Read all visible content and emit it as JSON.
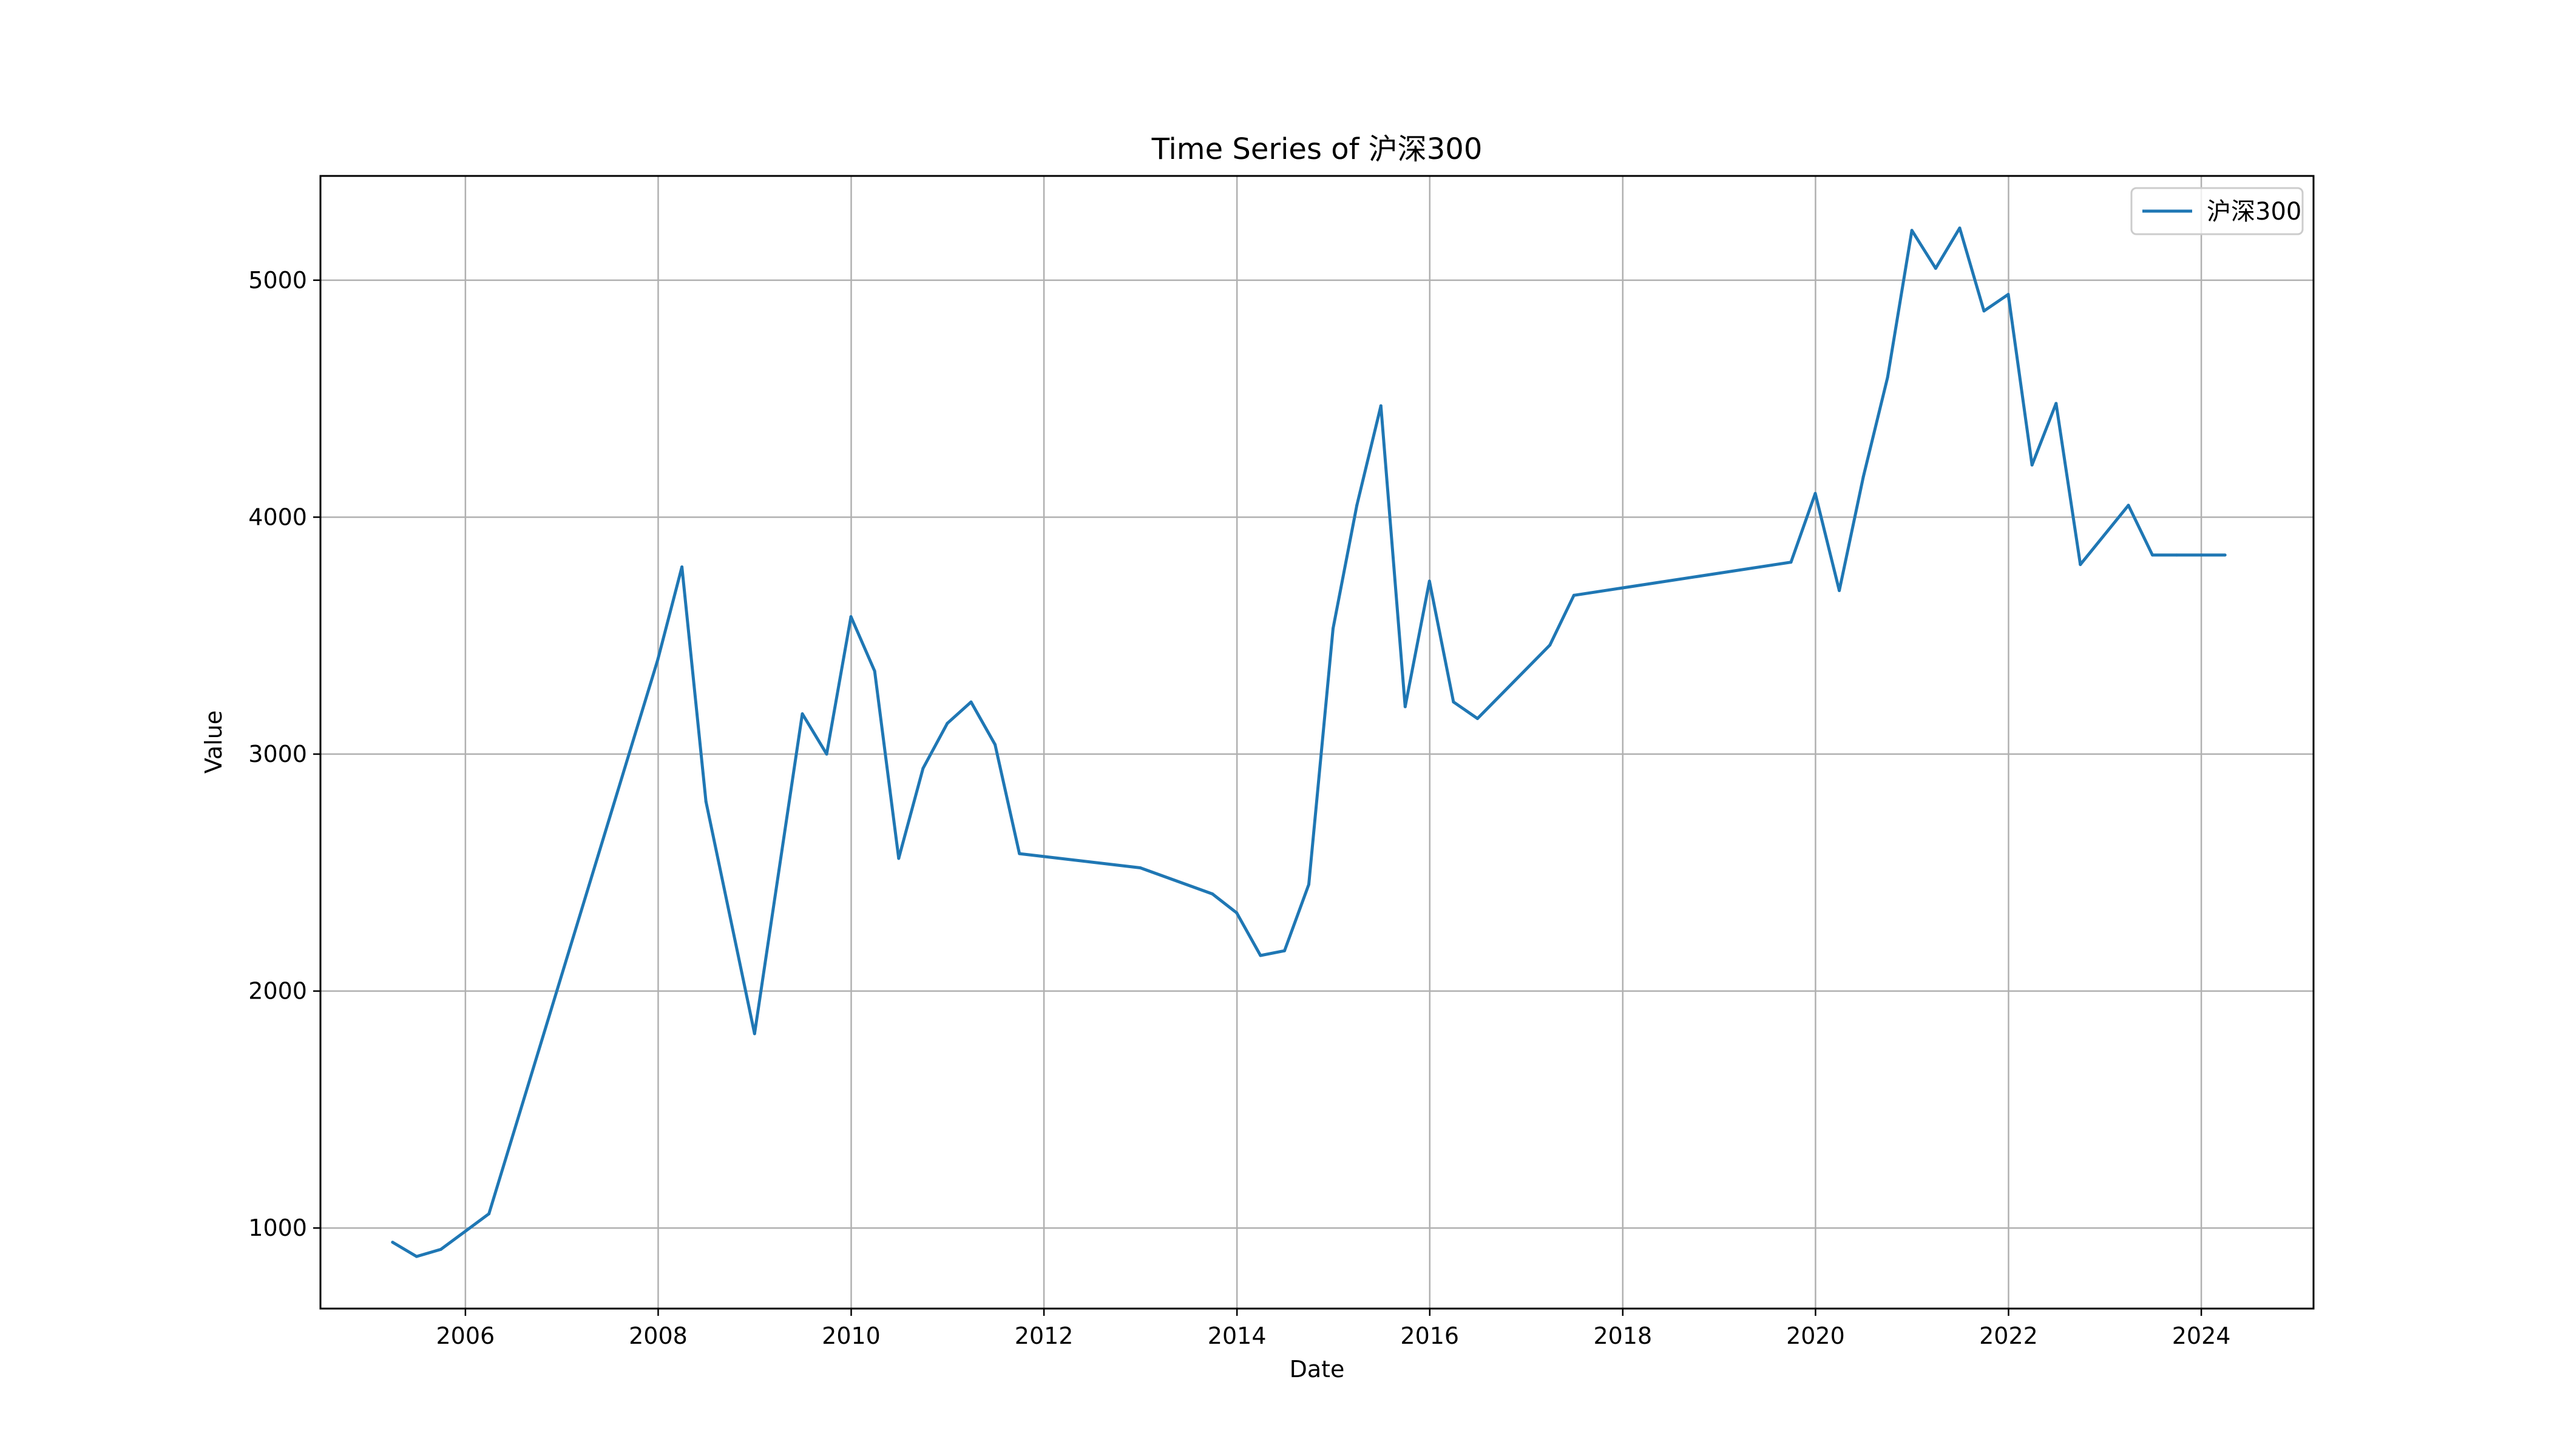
{
  "chart_data": {
    "type": "line",
    "title": "Time Series of 沪深300",
    "xlabel": "Date",
    "ylabel": "Value",
    "xlim": [
      "2004-07-01",
      "2025-03-01"
    ],
    "ylim": [
      660,
      5440
    ],
    "x_ticks": [
      "2006",
      "2008",
      "2010",
      "2012",
      "2014",
      "2016",
      "2018",
      "2020",
      "2022",
      "2024"
    ],
    "y_ticks": [
      1000,
      2000,
      3000,
      4000,
      5000
    ],
    "grid": true,
    "legend_position": "top-right",
    "colors": {
      "series": "#1f77b4",
      "grid": "#b0b0b0",
      "axes": "#000000"
    },
    "series": [
      {
        "name": "沪深300",
        "points": [
          [
            "2005-03-31",
            940
          ],
          [
            "2005-06-30",
            880
          ],
          [
            "2005-09-30",
            910
          ],
          [
            "2006-03-31",
            1060
          ],
          [
            "2007-12-31",
            3400
          ],
          [
            "2008-03-31",
            3790
          ],
          [
            "2008-06-30",
            2800
          ],
          [
            "2008-12-31",
            1820
          ],
          [
            "2009-06-30",
            3170
          ],
          [
            "2009-09-30",
            3000
          ],
          [
            "2009-12-31",
            3580
          ],
          [
            "2010-03-31",
            3350
          ],
          [
            "2010-06-30",
            2560
          ],
          [
            "2010-09-30",
            2940
          ],
          [
            "2010-12-31",
            3130
          ],
          [
            "2011-03-31",
            3220
          ],
          [
            "2011-06-30",
            3040
          ],
          [
            "2011-09-30",
            2580
          ],
          [
            "2012-12-31",
            2520
          ],
          [
            "2013-09-30",
            2410
          ],
          [
            "2013-12-31",
            2330
          ],
          [
            "2014-03-31",
            2150
          ],
          [
            "2014-06-30",
            2170
          ],
          [
            "2014-09-30",
            2450
          ],
          [
            "2014-12-31",
            3530
          ],
          [
            "2015-03-31",
            4050
          ],
          [
            "2015-06-30",
            4470
          ],
          [
            "2015-09-30",
            3200
          ],
          [
            "2015-12-31",
            3730
          ],
          [
            "2016-03-31",
            3220
          ],
          [
            "2016-06-30",
            3150
          ],
          [
            "2017-03-31",
            3460
          ],
          [
            "2017-06-30",
            3670
          ],
          [
            "2019-09-30",
            3810
          ],
          [
            "2019-12-31",
            4100
          ],
          [
            "2020-03-31",
            3690
          ],
          [
            "2020-06-30",
            4170
          ],
          [
            "2020-09-30",
            4590
          ],
          [
            "2020-12-31",
            5210
          ],
          [
            "2021-03-31",
            5050
          ],
          [
            "2021-06-30",
            5220
          ],
          [
            "2021-09-30",
            4870
          ],
          [
            "2021-12-31",
            4940
          ],
          [
            "2022-03-31",
            4220
          ],
          [
            "2022-06-30",
            4480
          ],
          [
            "2022-09-30",
            3800
          ],
          [
            "2023-03-31",
            4050
          ],
          [
            "2023-06-30",
            3840
          ],
          [
            "2023-09-30",
            3840
          ],
          [
            "2023-12-31",
            3840
          ],
          [
            "2024-03-31",
            3840
          ]
        ]
      }
    ]
  }
}
